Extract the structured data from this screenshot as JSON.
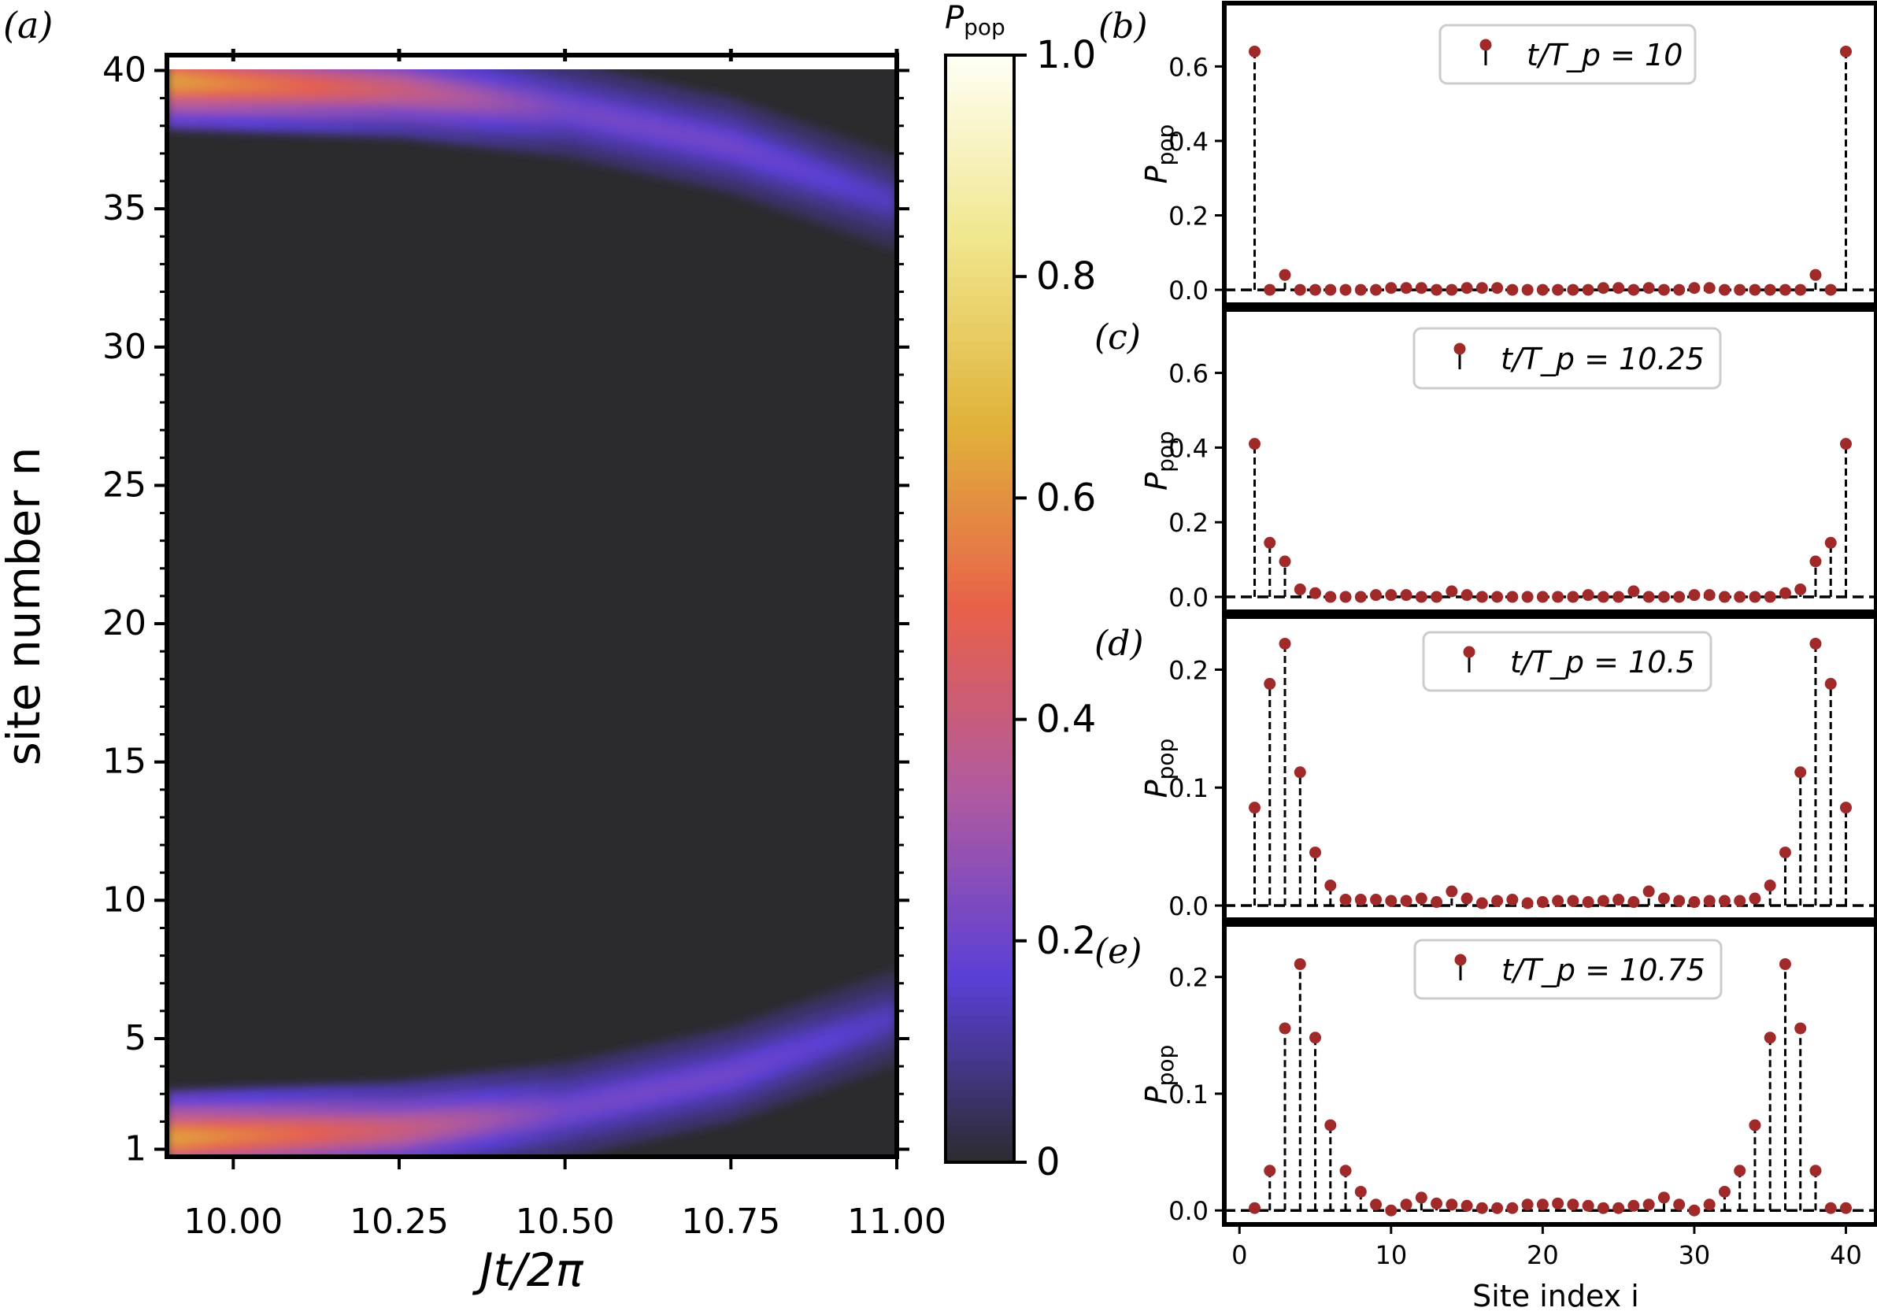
{
  "chart_data": [
    {
      "panel_label": "(a)",
      "type": "heatmap",
      "xlabel": "Jt/2π",
      "ylabel": "site number n",
      "xlim": [
        9.9,
        11.0
      ],
      "ylim": [
        1,
        40
      ],
      "x_ticks": [
        "10.00",
        "10.25",
        "10.50",
        "10.75",
        "11.00"
      ],
      "x_tick_values": [
        10.0,
        10.25,
        10.5,
        10.75,
        11.0
      ],
      "y_ticks": [
        "1",
        "5",
        "10",
        "15",
        "20",
        "25",
        "30",
        "35",
        "40"
      ],
      "y_tick_values": [
        1,
        5,
        10,
        15,
        20,
        25,
        30,
        35,
        40
      ],
      "colorbar": {
        "label": "P_pop",
        "range": [
          0,
          1
        ],
        "ticks": [
          "0",
          "0.2",
          "0.4",
          "0.6",
          "0.8",
          "1.0"
        ],
        "tick_values": [
          0,
          0.2,
          0.4,
          0.6,
          0.8,
          1.0
        ],
        "colors": [
          "#2b2b2e",
          "#5a3fd6",
          "#b05aa0",
          "#e8604a",
          "#e0b23a",
          "#f0e68c",
          "#fffff5"
        ]
      },
      "edge_bands": [
        {
          "edge": "top",
          "x": [
            9.9,
            10.25,
            10.5,
            10.75,
            11.0
          ],
          "center_site": [
            39.6,
            39.3,
            38.6,
            37.3,
            35.2
          ],
          "peak": [
            0.64,
            0.41,
            0.22,
            0.21,
            0.14
          ]
        },
        {
          "edge": "bottom",
          "x": [
            9.9,
            10.25,
            10.5,
            10.75,
            11.0
          ],
          "center_site": [
            1.4,
            1.7,
            2.4,
            3.7,
            5.8
          ],
          "peak": [
            0.64,
            0.41,
            0.22,
            0.21,
            0.14
          ]
        }
      ],
      "note": "bulk sites near zero population"
    },
    {
      "panel_label": "(b)",
      "type": "stem",
      "legend": "t/T_p = 10",
      "xlim": [
        -1,
        42
      ],
      "ylim": [
        -0.04,
        0.77
      ],
      "ylabel": "P_pop",
      "y_ticks": [
        "0.0",
        "0.2",
        "0.4",
        "0.6"
      ],
      "y_tick_values": [
        0,
        0.2,
        0.4,
        0.6
      ],
      "x": [
        1,
        2,
        3,
        4,
        5,
        6,
        7,
        8,
        9,
        10,
        11,
        12,
        13,
        14,
        15,
        16,
        17,
        18,
        19,
        20,
        21,
        22,
        23,
        24,
        25,
        26,
        27,
        28,
        29,
        30,
        31,
        32,
        33,
        34,
        35,
        36,
        37,
        38,
        39,
        40
      ],
      "values": [
        0.64,
        0.0,
        0.04,
        0.0,
        0.0,
        0.0,
        0.0,
        0.0,
        0.0,
        0.005,
        0.005,
        0.005,
        0.0,
        0.0,
        0.005,
        0.005,
        0.005,
        0.0,
        0.0,
        0.0,
        0.0,
        0.0,
        0.0,
        0.005,
        0.005,
        0.0,
        0.005,
        0.0,
        0.0,
        0.005,
        0.005,
        0.0,
        0.0,
        0.0,
        0.0,
        0.0,
        0.0,
        0.04,
        0.0,
        0.64
      ]
    },
    {
      "panel_label": "(c)",
      "type": "stem",
      "legend": "t/T_p = 10.25",
      "xlim": [
        -1,
        42
      ],
      "ylim": [
        -0.04,
        0.77
      ],
      "ylabel": "P_pop",
      "y_ticks": [
        "0.0",
        "0.2",
        "0.4",
        "0.6"
      ],
      "y_tick_values": [
        0,
        0.2,
        0.4,
        0.6
      ],
      "x": [
        1,
        2,
        3,
        4,
        5,
        6,
        7,
        8,
        9,
        10,
        11,
        12,
        13,
        14,
        15,
        16,
        17,
        18,
        19,
        20,
        21,
        22,
        23,
        24,
        25,
        26,
        27,
        28,
        29,
        30,
        31,
        32,
        33,
        34,
        35,
        36,
        37,
        38,
        39,
        40
      ],
      "values": [
        0.41,
        0.145,
        0.095,
        0.02,
        0.01,
        0.0,
        0.0,
        0.0,
        0.005,
        0.005,
        0.005,
        0.0,
        0.0,
        0.015,
        0.005,
        0.0,
        0.0,
        0.0,
        0.0,
        0.0,
        0.0,
        0.0,
        0.005,
        0.0,
        0.0,
        0.015,
        0.0,
        0.0,
        0.0,
        0.005,
        0.005,
        0.0,
        0.0,
        0.0,
        0.0,
        0.01,
        0.02,
        0.095,
        0.145,
        0.41
      ]
    },
    {
      "panel_label": "(d)",
      "type": "stem",
      "legend": "t/T_p = 10.5",
      "xlim": [
        -1,
        42
      ],
      "ylim": [
        -0.012,
        0.245
      ],
      "ylabel": "P_pop",
      "y_ticks": [
        "0.0",
        "0.1",
        "0.2"
      ],
      "y_tick_values": [
        0,
        0.1,
        0.2
      ],
      "x": [
        1,
        2,
        3,
        4,
        5,
        6,
        7,
        8,
        9,
        10,
        11,
        12,
        13,
        14,
        15,
        16,
        17,
        18,
        19,
        20,
        21,
        22,
        23,
        24,
        25,
        26,
        27,
        28,
        29,
        30,
        31,
        32,
        33,
        34,
        35,
        36,
        37,
        38,
        39,
        40
      ],
      "values": [
        0.083,
        0.188,
        0.222,
        0.113,
        0.045,
        0.017,
        0.005,
        0.005,
        0.005,
        0.004,
        0.004,
        0.006,
        0.003,
        0.012,
        0.006,
        0.002,
        0.004,
        0.005,
        0.002,
        0.003,
        0.004,
        0.004,
        0.003,
        0.004,
        0.005,
        0.003,
        0.012,
        0.006,
        0.004,
        0.003,
        0.004,
        0.004,
        0.004,
        0.006,
        0.017,
        0.045,
        0.113,
        0.222,
        0.188,
        0.083
      ]
    },
    {
      "panel_label": "(e)",
      "type": "stem",
      "legend": "t/T_p = 10.75",
      "xlabel": "Site index i",
      "xlim": [
        -1,
        42
      ],
      "ylim": [
        -0.012,
        0.245
      ],
      "ylabel": "P_pop",
      "x_ticks": [
        "0",
        "10",
        "20",
        "30",
        "40"
      ],
      "x_tick_values": [
        0,
        10,
        20,
        30,
        40
      ],
      "y_ticks": [
        "0.0",
        "0.1",
        "0.2"
      ],
      "y_tick_values": [
        0,
        0.1,
        0.2
      ],
      "x": [
        1,
        2,
        3,
        4,
        5,
        6,
        7,
        8,
        9,
        10,
        11,
        12,
        13,
        14,
        15,
        16,
        17,
        18,
        19,
        20,
        21,
        22,
        23,
        24,
        25,
        26,
        27,
        28,
        29,
        30,
        31,
        32,
        33,
        34,
        35,
        36,
        37,
        38,
        39,
        40
      ],
      "values": [
        0.002,
        0.034,
        0.156,
        0.211,
        0.148,
        0.073,
        0.034,
        0.016,
        0.005,
        0.0,
        0.005,
        0.011,
        0.006,
        0.005,
        0.004,
        0.002,
        0.002,
        0.002,
        0.005,
        0.005,
        0.006,
        0.005,
        0.004,
        0.002,
        0.002,
        0.004,
        0.005,
        0.011,
        0.005,
        0.0,
        0.005,
        0.016,
        0.034,
        0.073,
        0.148,
        0.211,
        0.156,
        0.034,
        0.002,
        0.002
      ]
    }
  ]
}
